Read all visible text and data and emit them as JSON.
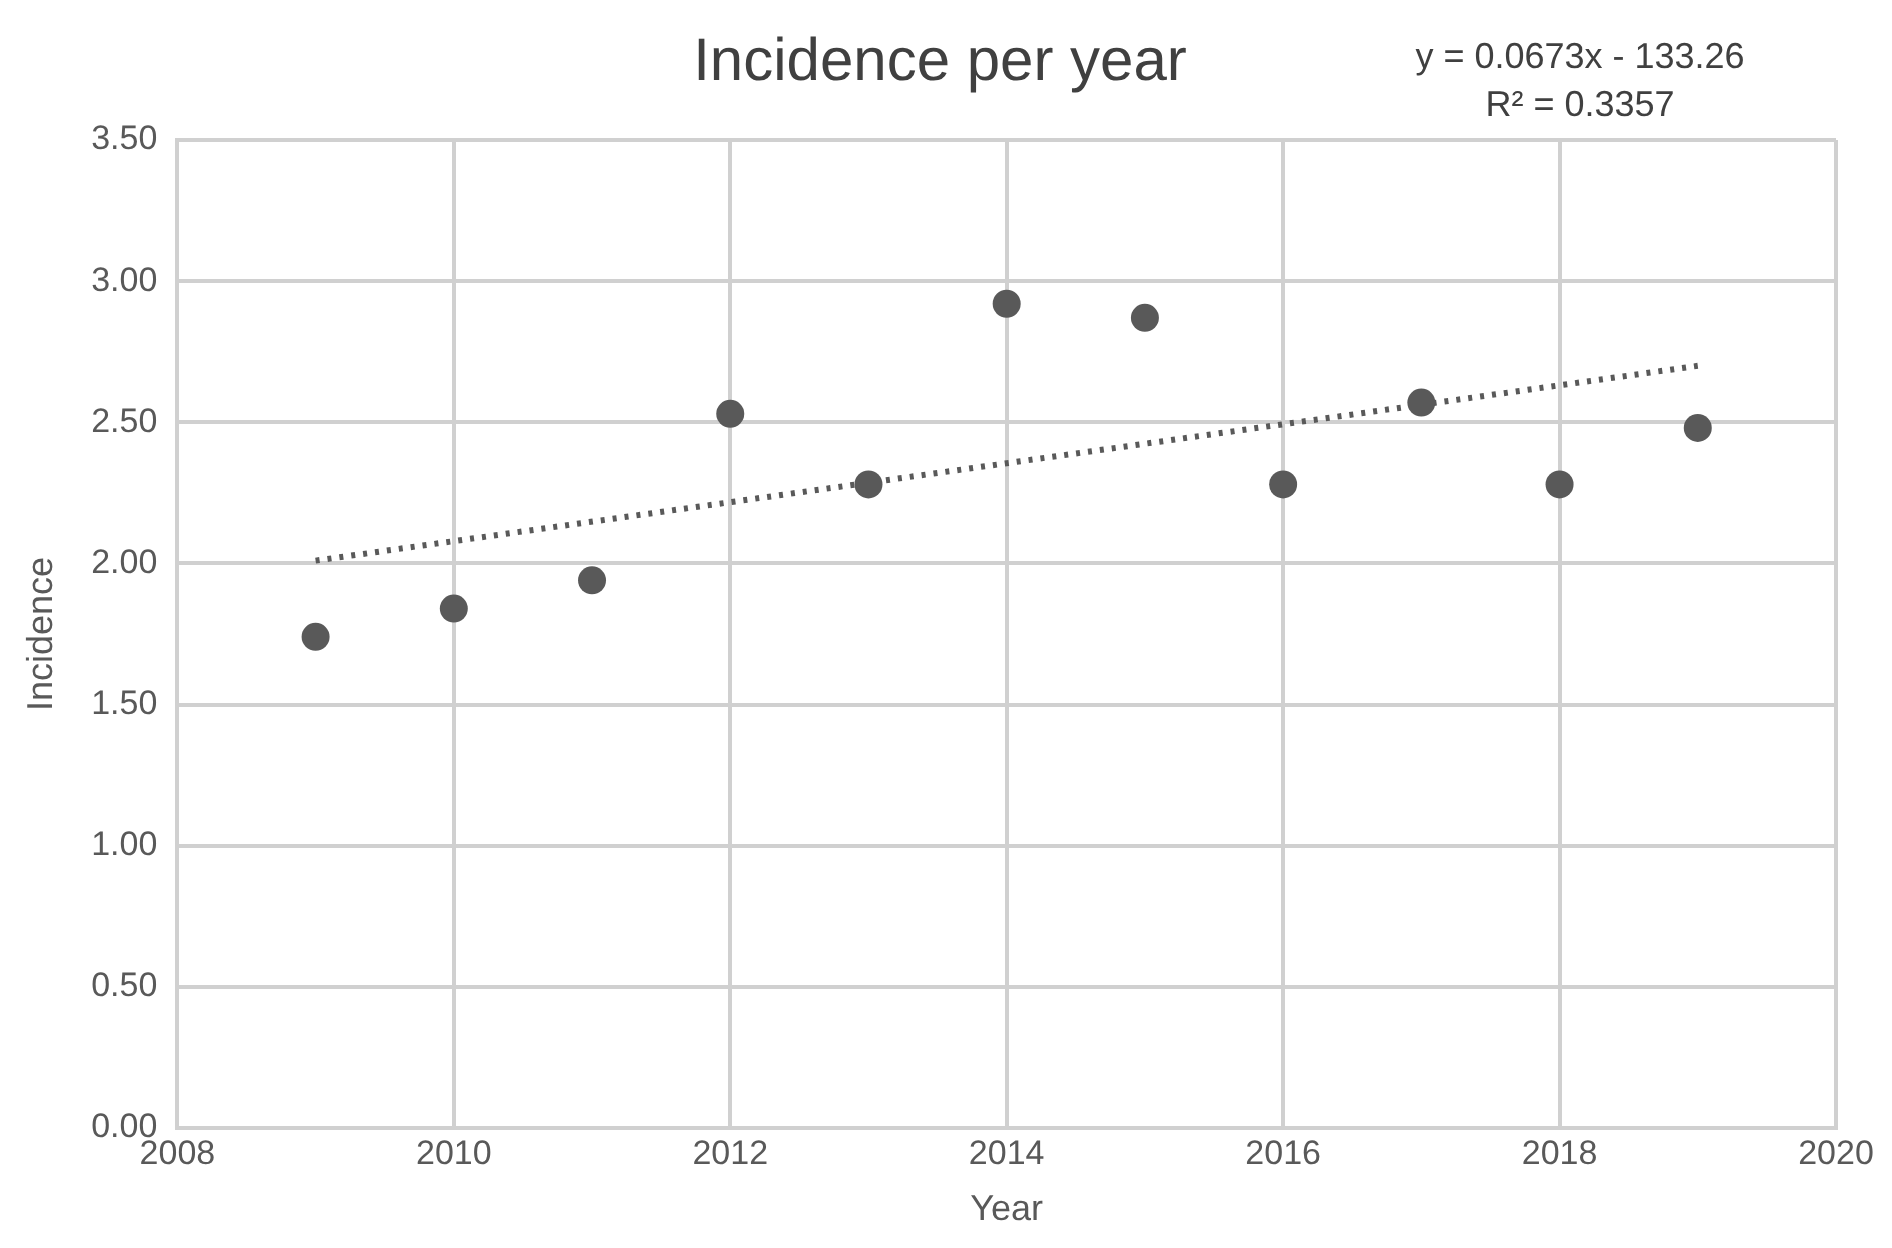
{
  "chart_data": {
    "type": "scatter",
    "title": "Incidence per year",
    "xlabel": "Year",
    "ylabel": "Incidence",
    "annotations": [
      "y = 0.0673x - 133.26",
      "R² = 0.3357"
    ],
    "series": [
      {
        "color": "#595959",
        "marker": "circle",
        "x": [
          2009,
          2010,
          2011,
          2012,
          2013,
          2014,
          2015,
          2016,
          2017,
          2018,
          2019
        ],
        "values": [
          1.74,
          1.84,
          1.94,
          2.53,
          2.28,
          2.92,
          2.87,
          2.28,
          2.57,
          2.28,
          2.48
        ]
      },
      {
        "type": "line",
        "color": "#595959",
        "marker": "none",
        "line_style": "dotted",
        "x": [
          2009,
          2019
        ],
        "values": [
          2.01,
          2.7
        ]
      }
    ],
    "xlim": [
      2008,
      2020
    ],
    "xticks": [
      2008,
      2010,
      2012,
      2014,
      2016,
      2018,
      2020
    ],
    "ylim": [
      0,
      3.5
    ],
    "yticks": [
      {
        "value": 0,
        "label": "0.00"
      },
      {
        "value": 0.5,
        "label": "0.50"
      },
      {
        "value": 1,
        "label": "1.00"
      },
      {
        "value": 1.5,
        "label": "1.50"
      },
      {
        "value": 2,
        "label": "2.00"
      },
      {
        "value": 2.5,
        "label": "2.50"
      },
      {
        "value": 3,
        "label": "3.00"
      },
      {
        "value": 3.5,
        "label": "3.50"
      }
    ],
    "grid": true,
    "legend": false
  }
}
